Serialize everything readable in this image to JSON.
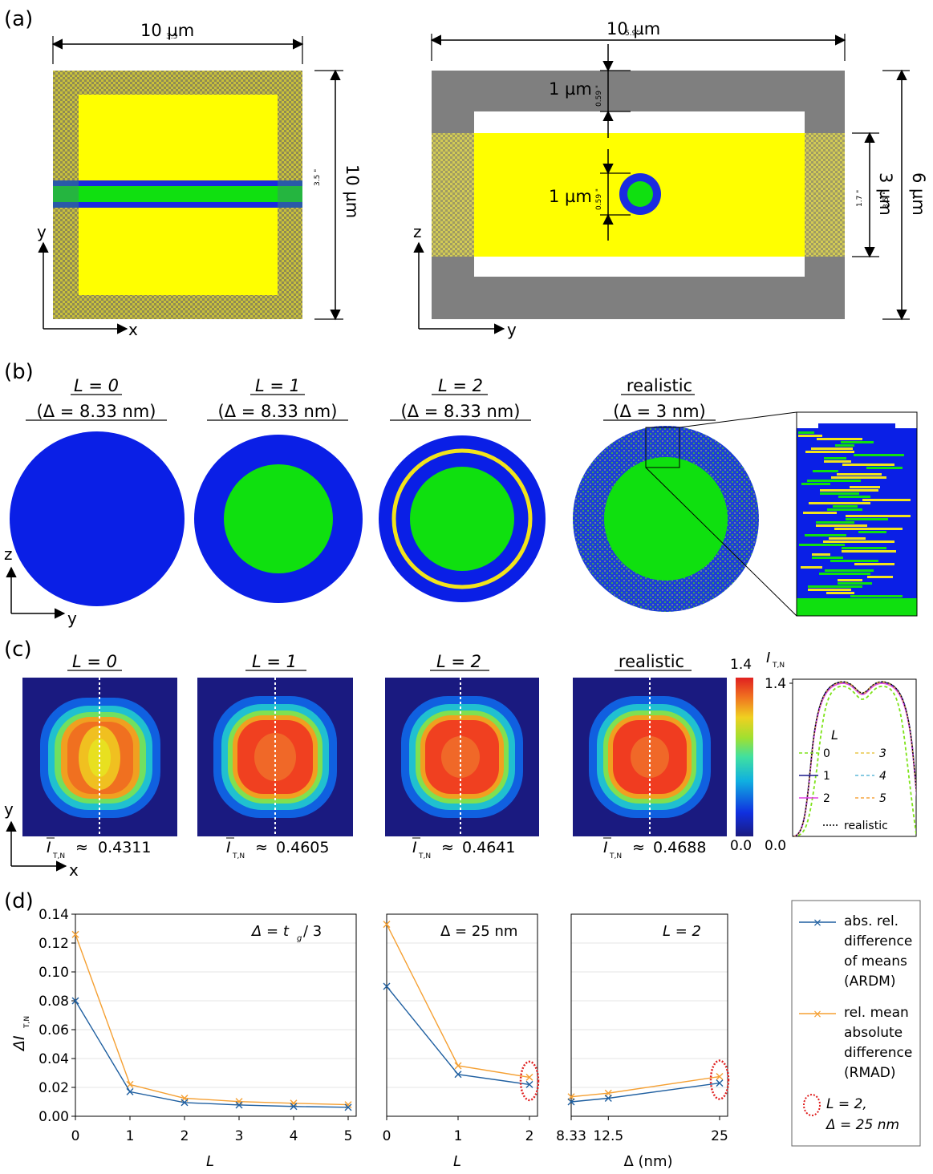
{
  "panels": {
    "a": "(a)",
    "b": "(b)",
    "c": "(c)",
    "d": "(d)"
  },
  "panel_a": {
    "left": {
      "width_label": "10 µm",
      "height_label": "10 µm",
      "tiny_top": "3.5",
      "tiny_right": "3.5 \"",
      "axis_x": "x",
      "axis_y": "y"
    },
    "right": {
      "width_label": "10 µm",
      "top_gap_label": "1 µm",
      "wire_label": "1 µm",
      "core_height_label": "3 µm",
      "total_height_label": "6 µm",
      "tiny_top": "5.9\"",
      "tiny_gap": "0.59 \"",
      "tiny_wire": "0.59 \"",
      "tiny_core_a": "1.7 \"",
      "tiny_core_b": "3.5 \"",
      "axis_x": "y",
      "axis_y": "z"
    }
  },
  "panel_b": {
    "headers": [
      {
        "line1": "L = 0",
        "line2": "(Δ = 8.33 nm)"
      },
      {
        "line1": "L = 1",
        "line2": "(Δ = 8.33 nm)"
      },
      {
        "line1": "L = 2",
        "line2": "(Δ = 8.33 nm)"
      },
      {
        "line1": "realistic",
        "line2": "(Δ = 3 nm)"
      }
    ],
    "axis_x": "y",
    "axis_y": "z",
    "colors": {
      "blue": "#0a1fe6",
      "green": "#0fe00f",
      "yellow": "#f2e41c"
    }
  },
  "panel_c": {
    "headers": [
      "L = 0",
      "L = 1",
      "L = 2",
      "realistic"
    ],
    "means": [
      "0.4311",
      "0.4605",
      "0.4641",
      "0.4688"
    ],
    "mean_symbol": "I",
    "mean_sub": "T,N",
    "approx": "≈",
    "colorbar": {
      "max": "1.4",
      "min": "0.0"
    },
    "profile": {
      "ylabel": "I",
      "ylabel_sub": "T,N",
      "ytick_max": "1.4",
      "ytick_min": "0.0",
      "legend_title": "L",
      "legend": [
        {
          "name": "0",
          "color": "#7fe31a",
          "dash": "4,3"
        },
        {
          "name": "3",
          "color": "#e8c74a",
          "dash": "4,3"
        },
        {
          "name": "1",
          "color": "#1a1a8c",
          "dash": ""
        },
        {
          "name": "4",
          "color": "#5fb8d8",
          "dash": "4,3"
        },
        {
          "name": "2",
          "color": "#e040e0",
          "dash": ""
        },
        {
          "name": "5",
          "color": "#f5a640",
          "dash": "4,3"
        },
        {
          "name": "realistic",
          "color": "#000000",
          "dash": "2,2"
        }
      ]
    },
    "axis_x": "x",
    "axis_y": "y"
  },
  "chart_data": [
    {
      "type": "line",
      "title": "Δ = t_g / 3",
      "title_main": "Δ = t",
      "title_sub": "g",
      "title_tail": " / 3",
      "xlabel": "L",
      "ylabel": "ΔI",
      "ylabel_sub": "T,N",
      "x": [
        0,
        1,
        2,
        3,
        4,
        5
      ],
      "xticks": [
        "0",
        "1",
        "2",
        "3",
        "4",
        "5"
      ],
      "ylim": [
        0,
        0.14
      ],
      "yticks": [
        "0.00",
        "0.02",
        "0.04",
        "0.06",
        "0.08",
        "0.10",
        "0.12",
        "0.14"
      ],
      "series": [
        {
          "name": "ARDM",
          "color": "#1f5fa0",
          "values": [
            0.08,
            0.017,
            0.0095,
            0.0078,
            0.0068,
            0.0062
          ]
        },
        {
          "name": "RMAD",
          "color": "#f5a033",
          "values": [
            0.126,
            0.022,
            0.0125,
            0.0102,
            0.009,
            0.008
          ]
        }
      ]
    },
    {
      "type": "line",
      "title": "Δ = 25 nm",
      "xlabel": "L",
      "x": [
        0,
        1,
        2
      ],
      "xticks": [
        "0",
        "1",
        "2"
      ],
      "ylim": [
        0,
        0.14
      ],
      "series": [
        {
          "name": "ARDM",
          "color": "#1f5fa0",
          "values": [
            0.09,
            0.029,
            0.022
          ]
        },
        {
          "name": "RMAD",
          "color": "#f5a033",
          "values": [
            0.133,
            0.035,
            0.027
          ]
        }
      ]
    },
    {
      "type": "line",
      "title": "L = 2",
      "xlabel": "Δ (nm)",
      "x": [
        8.33,
        12.5,
        25
      ],
      "xticks": [
        "8.33",
        "12.5",
        "25"
      ],
      "ylim": [
        0,
        0.14
      ],
      "series": [
        {
          "name": "ARDM",
          "color": "#1f5fa0",
          "values": [
            0.01,
            0.0125,
            0.023
          ]
        },
        {
          "name": "RMAD",
          "color": "#f5a033",
          "values": [
            0.0135,
            0.016,
            0.0275
          ]
        }
      ]
    }
  ],
  "panel_d_legend": {
    "ardm": [
      "abs. rel.",
      "difference",
      "of means",
      "(ARDM)"
    ],
    "rmad": [
      "rel. mean",
      "absolute",
      "difference",
      "(RMAD)"
    ],
    "marker": [
      "L = 2,",
      "Δ = 25 nm"
    ],
    "marker_color": "#e02020"
  }
}
